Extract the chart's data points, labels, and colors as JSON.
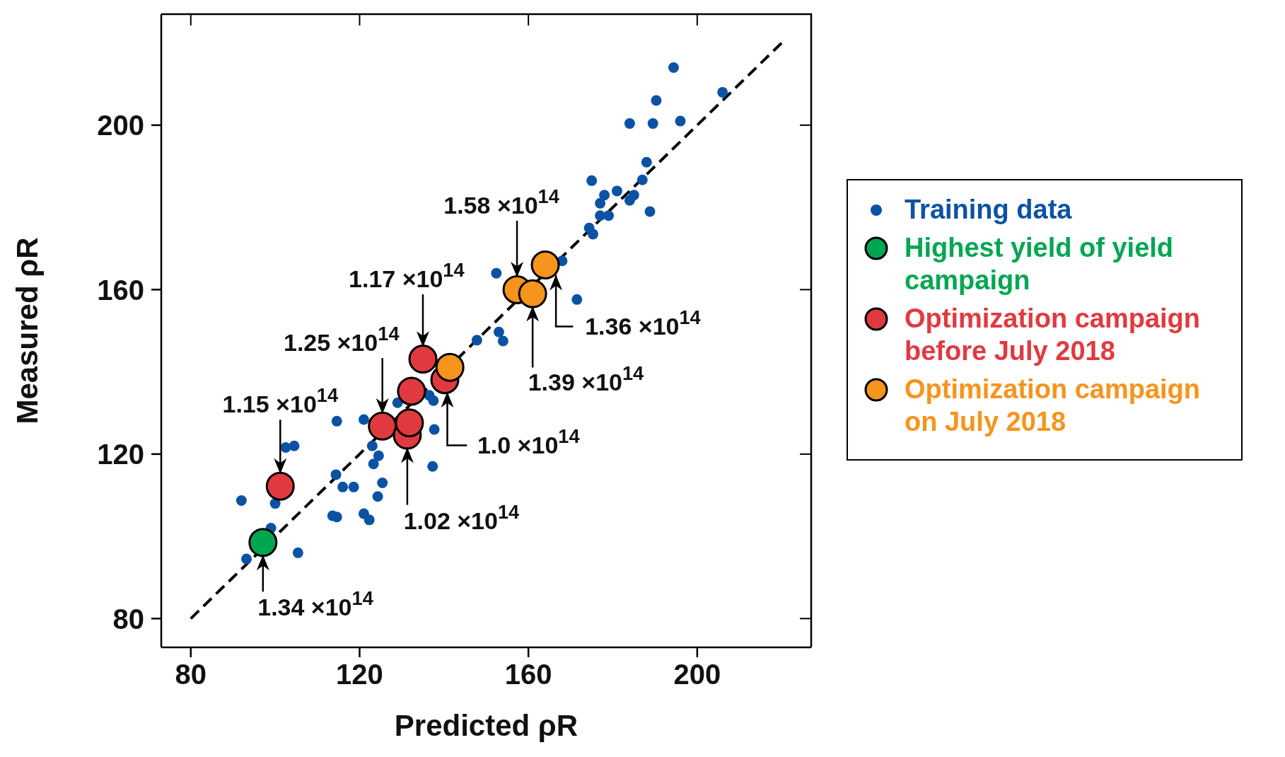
{
  "chart_data": {
    "type": "scatter",
    "xlabel": "Predicted ρR",
    "ylabel": "Measured ρR",
    "xlim": [
      73,
      227
    ],
    "ylim": [
      73,
      227
    ],
    "xticks": [
      80,
      120,
      160,
      200
    ],
    "yticks": [
      80,
      120,
      160,
      200
    ],
    "grid": false,
    "legend": "right",
    "marker": "circle",
    "series": [
      {
        "name": "Training data",
        "color": "#0b52a3",
        "x": [
          92,
          93.2,
          99,
          100,
          102.5,
          104.5,
          105.4,
          113.6,
          114.6,
          114.4,
          114.6,
          116,
          118.6,
          121,
          121,
          122.3,
          123,
          123.3,
          124.5,
          124.3,
          125.4,
          129,
          136.5,
          137.5,
          137.7,
          137.3,
          147.8,
          152.4,
          153,
          154,
          162,
          168,
          171.5,
          174.4,
          175.3,
          175,
          177,
          178,
          177,
          179,
          181,
          184,
          185,
          187,
          188,
          188.8,
          184,
          189.5,
          190.3,
          196,
          194.4,
          206
        ],
        "values": [
          108.7,
          94.5,
          102,
          108,
          121.6,
          122,
          96,
          105,
          104.7,
          115,
          128,
          112,
          112,
          128.4,
          105.5,
          104,
          122,
          117.6,
          119.6,
          109.7,
          113,
          132.5,
          134.3,
          133,
          126,
          117,
          147.7,
          164,
          149.7,
          147.5,
          null,
          167,
          157.6,
          175,
          173.5,
          186.5,
          181,
          183,
          178,
          178,
          184,
          181.7,
          183,
          186.7,
          191,
          179,
          200.4,
          200.4,
          206,
          201,
          214,
          208
        ]
      },
      {
        "name": "Highest yield of yield campaign",
        "color": "#00a651",
        "x": [
          97.1
        ],
        "values": [
          98.5
        ]
      },
      {
        "name": "Optimization campaign before July 2018",
        "color": "#e03a40",
        "x": [
          101.2,
          125.4,
          131.3,
          131.8,
          132.3,
          135,
          140.2
        ],
        "values": [
          112.2,
          126.8,
          124.6,
          127.6,
          135.3,
          143.1,
          138.1
        ]
      },
      {
        "name": "Optimization campaign on July 2018",
        "color": "#f7941d",
        "x": [
          141.4,
          157.3,
          161,
          164
        ],
        "values": [
          141.1,
          160,
          159,
          166
        ]
      },
      {
        "type": "line",
        "color": "#000000",
        "line_style": "dashed",
        "marker": "none",
        "x": [
          80,
          220
        ],
        "values": [
          80,
          220
        ]
      }
    ],
    "annotations": [
      {
        "text": "1.15 ×10$^{14}$",
        "x": 101.2,
        "y": 112.2
      },
      {
        "text": "1.25 ×10$^{14}$",
        "x": 125.4,
        "y": 126.8
      },
      {
        "text": "1.17 ×10$^{14}$",
        "x": 135,
        "y": 143.1
      },
      {
        "text": "1.02 ×10$^{14}$",
        "x": 131.3,
        "y": 124.6
      },
      {
        "text": "1.0 ×10$^{14}$",
        "x": 140.2,
        "y": 138.1
      },
      {
        "text": "1.58 ×10$^{14}$",
        "x": 157.3,
        "y": 160
      },
      {
        "text": "1.39 ×10$^{14}$",
        "x": 161,
        "y": 159
      },
      {
        "text": "1.36 ×10$^{14}$",
        "x": 164,
        "y": 166
      },
      {
        "text": "1.34 ×10$^{14}$",
        "x": 97.1,
        "y": 98.5
      }
    ]
  }
}
